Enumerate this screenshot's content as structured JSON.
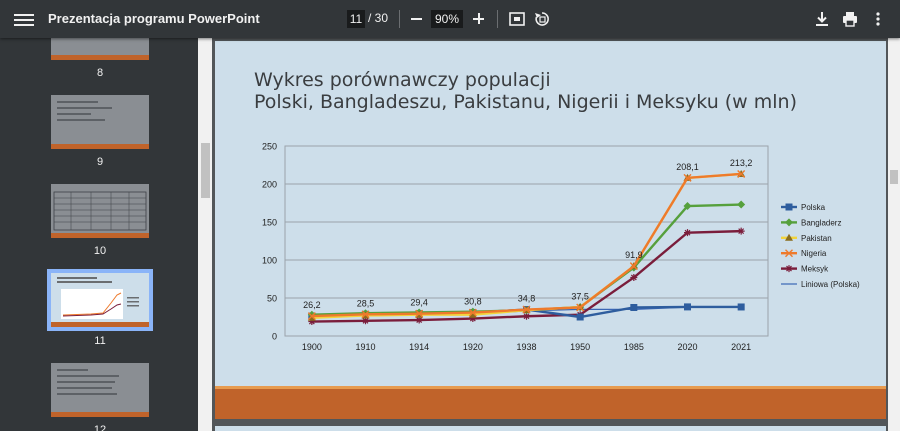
{
  "toolbar": {
    "title": "Prezentacja programu PowerPoint",
    "current_page": "11",
    "total_pages": "/ 30",
    "zoom": "90%",
    "icons": [
      "menu-icon",
      "zoom-out-icon",
      "zoom-in-icon",
      "fit-page-icon",
      "rotate-icon",
      "download-icon",
      "print-icon",
      "more-icon"
    ]
  },
  "sidebar": {
    "thumbnails": [
      {
        "label": "8"
      },
      {
        "label": "9"
      },
      {
        "label": "10"
      },
      {
        "label": "11"
      },
      {
        "label": "12"
      }
    ]
  },
  "slide": {
    "title_line1": "Wykres porównawczy populacji",
    "title_line2": "Polski, Bangladeszu, Pakistanu, Nigerii i Meksyku (w mln)"
  },
  "chart_data": {
    "type": "line",
    "categories": [
      "1900",
      "1910",
      "1914",
      "1920",
      "1938",
      "1950",
      "1985",
      "2020",
      "2021"
    ],
    "ylim": [
      0,
      250
    ],
    "yticks": [
      "0",
      "50",
      "100",
      "150",
      "200",
      "250"
    ],
    "grid": true,
    "legend_position": "right",
    "series": [
      {
        "name": "Polska",
        "color": "#2e5d9e",
        "values": [
          26.2,
          28.5,
          29.4,
          30.8,
          34.8,
          25,
          37.5,
          38.3,
          38.2
        ]
      },
      {
        "name": "Bangladerz",
        "color": "#56a03c",
        "values": [
          28,
          30,
          31,
          32,
          34,
          38,
          90,
          171,
          173
        ]
      },
      {
        "name": "Pakistan",
        "color": "#f2d43c",
        "values": [
          24,
          27,
          28,
          28,
          34,
          38,
          91.9,
          208,
          213.2
        ]
      },
      {
        "name": "Nigeria",
        "color": "#ee7a2c",
        "values": [
          26.2,
          28.5,
          29.4,
          30.8,
          34.8,
          37.5,
          91.9,
          208.1,
          213.2
        ]
      },
      {
        "name": "Meksyk",
        "color": "#7a1d3b",
        "values": [
          19,
          20,
          21,
          23,
          26,
          28,
          77,
          136,
          138
        ]
      },
      {
        "name": "Liniowa (Polska)",
        "color": "#3a66b5",
        "values": [
          25,
          27,
          29,
          29,
          33,
          35,
          35,
          38,
          38
        ]
      }
    ],
    "data_labels": [
      {
        "text": "26,2",
        "series": "Nigeria",
        "index": 0
      },
      {
        "text": "28,5",
        "series": "Nigeria",
        "index": 1
      },
      {
        "text": "29,4",
        "series": "Nigeria",
        "index": 2
      },
      {
        "text": "30,8",
        "series": "Nigeria",
        "index": 3
      },
      {
        "text": "34,8",
        "series": "Nigeria",
        "index": 4
      },
      {
        "text": "37,5",
        "series": "Nigeria",
        "index": 5
      },
      {
        "text": "91,9",
        "series": "Nigeria",
        "index": 6
      },
      {
        "text": "208,1",
        "series": "Nigeria",
        "index": 7
      },
      {
        "text": "213,2",
        "series": "Nigeria",
        "index": 8
      }
    ]
  }
}
